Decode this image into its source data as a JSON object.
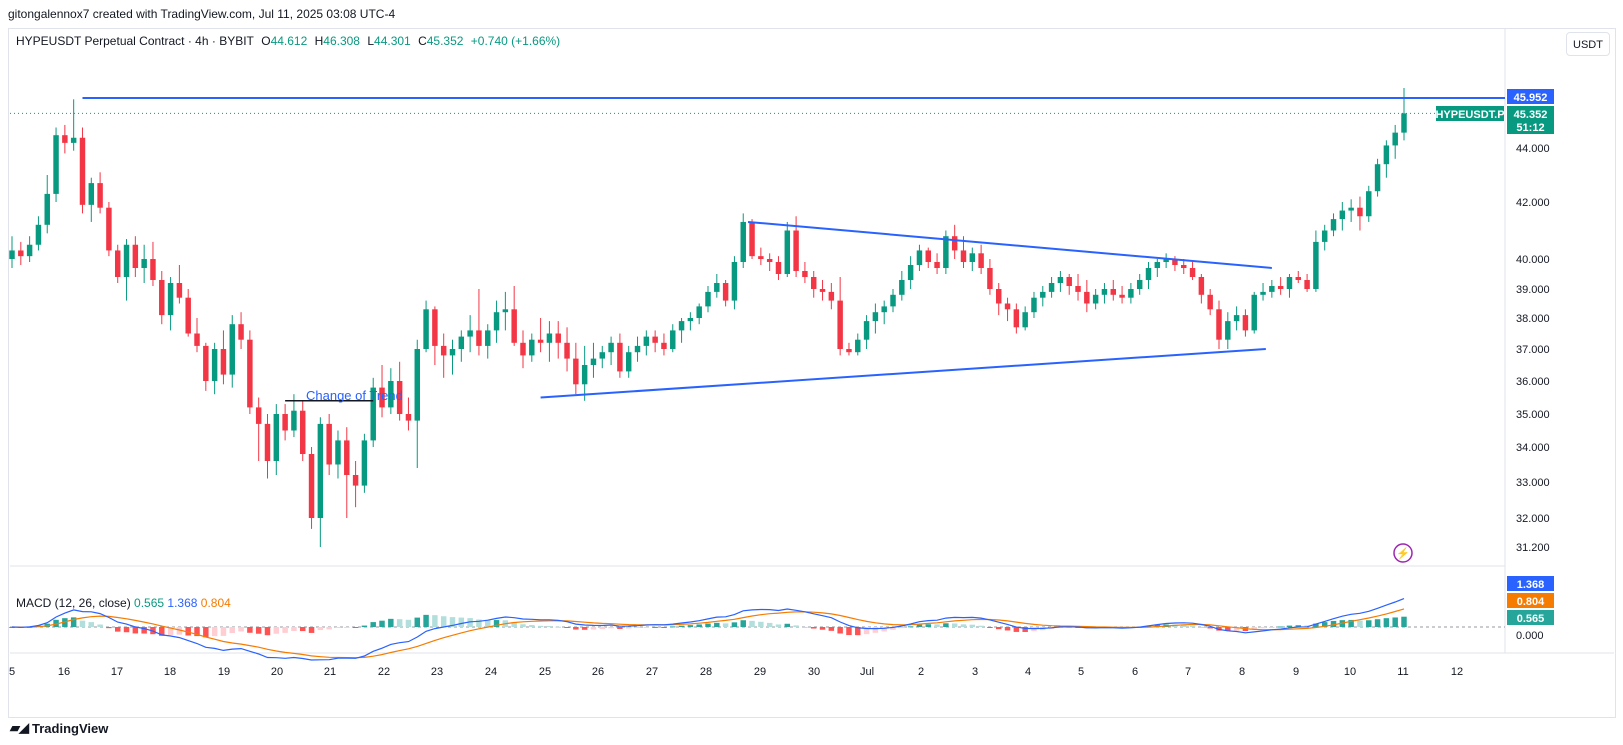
{
  "header": {
    "author_line": "gitongalennox7 created with TradingView.com, Jul 11, 2025 03:08 UTC-4"
  },
  "symbol": {
    "name": "HYPEUSDT Perpetual Contract · 4h · BYBIT",
    "o_label": "O",
    "o": "44.612",
    "h_label": "H",
    "h": "46.308",
    "l_label": "L",
    "l": "44.301",
    "c_label": "C",
    "c": "45.352",
    "change": "+0.740 (+1.66%)"
  },
  "currency_button": "USDT",
  "price_tags": {
    "resistance": "45.952",
    "ticker": "HYPEUSDT.P",
    "last": "45.352",
    "countdown": "51:12"
  },
  "annotation": "Change of Trend",
  "macd": {
    "label": "MACD (12, 26, close)",
    "hist": "0.565",
    "macd": "1.368",
    "signal": "0.804",
    "zero": "0.000"
  },
  "branding": "TradingView",
  "colors": {
    "up": "#089981",
    "down": "#f23645",
    "line": "#2962ff",
    "signal": "#f57c00",
    "hist_up_strong": "#26a69a",
    "hist_up_weak": "#b2dfdb",
    "hist_down_strong": "#ff5252",
    "hist_down_weak": "#ffcdd2",
    "accent_purple": "#9c27b0"
  },
  "chart_data": {
    "type": "candlestick",
    "timeframe": "4h",
    "price_axis_ticks": [
      "44.000",
      "42.000",
      "40.000",
      "39.000",
      "38.000",
      "37.000",
      "36.000",
      "35.000",
      "34.000",
      "33.000",
      "32.000",
      "31.200"
    ],
    "price_axis_values": [
      44,
      42,
      40,
      39,
      38,
      37,
      36,
      35,
      34,
      33,
      32,
      31.2
    ],
    "time_axis_labels": [
      "5",
      "16",
      "17",
      "18",
      "19",
      "20",
      "21",
      "22",
      "23",
      "24",
      "25",
      "26",
      "27",
      "28",
      "29",
      "30",
      "Jul",
      "2",
      "3",
      "4",
      "5",
      "6",
      "7",
      "8",
      "9",
      "10",
      "11",
      "12"
    ],
    "ohlc": [
      [
        40.0,
        40.8,
        39.7,
        40.3
      ],
      [
        40.3,
        40.6,
        39.8,
        40.1
      ],
      [
        40.1,
        40.8,
        39.9,
        40.5
      ],
      [
        40.5,
        41.5,
        40.3,
        41.2
      ],
      [
        41.2,
        43.0,
        40.9,
        42.3
      ],
      [
        42.3,
        44.8,
        42.0,
        44.5
      ],
      [
        44.5,
        44.9,
        43.8,
        44.2
      ],
      [
        44.2,
        45.9,
        43.9,
        44.4
      ],
      [
        44.4,
        44.8,
        41.6,
        41.9
      ],
      [
        41.9,
        42.9,
        41.3,
        42.7
      ],
      [
        42.7,
        43.1,
        41.6,
        41.8
      ],
      [
        41.8,
        42.0,
        40.1,
        40.3
      ],
      [
        40.3,
        40.5,
        39.2,
        39.4
      ],
      [
        39.4,
        40.7,
        38.6,
        40.5
      ],
      [
        40.5,
        40.8,
        39.4,
        39.7
      ],
      [
        39.7,
        40.5,
        39.2,
        40.0
      ],
      [
        40.0,
        40.6,
        39.1,
        39.3
      ],
      [
        39.3,
        39.6,
        37.8,
        38.1
      ],
      [
        38.1,
        39.4,
        37.6,
        39.2
      ],
      [
        39.2,
        39.8,
        38.5,
        38.7
      ],
      [
        38.7,
        39.0,
        37.4,
        37.5
      ],
      [
        37.5,
        38.0,
        36.9,
        37.1
      ],
      [
        37.1,
        37.2,
        35.7,
        36.0
      ],
      [
        36.0,
        37.2,
        35.6,
        37.0
      ],
      [
        37.0,
        37.6,
        35.9,
        36.2
      ],
      [
        36.2,
        38.1,
        35.8,
        37.8
      ],
      [
        37.8,
        38.2,
        37.0,
        37.3
      ],
      [
        37.3,
        37.6,
        35.0,
        35.2
      ],
      [
        35.2,
        35.5,
        33.6,
        34.7
      ],
      [
        34.7,
        35.0,
        33.1,
        33.6
      ],
      [
        33.6,
        35.3,
        33.2,
        35.0
      ],
      [
        35.0,
        35.3,
        34.2,
        34.5
      ],
      [
        34.5,
        35.6,
        34.3,
        35.1
      ],
      [
        35.1,
        35.4,
        33.6,
        33.8
      ],
      [
        33.8,
        34.0,
        31.7,
        32.0
      ],
      [
        32.0,
        34.9,
        31.2,
        34.7
      ],
      [
        34.7,
        35.0,
        33.2,
        33.5
      ],
      [
        33.5,
        34.5,
        33.1,
        34.2
      ],
      [
        34.2,
        34.6,
        32.0,
        33.2
      ],
      [
        33.2,
        33.6,
        32.3,
        32.9
      ],
      [
        32.9,
        34.4,
        32.7,
        34.2
      ],
      [
        34.2,
        36.1,
        34.0,
        35.8
      ],
      [
        35.8,
        36.5,
        34.9,
        35.2
      ],
      [
        35.2,
        36.4,
        35.0,
        36.0
      ],
      [
        36.0,
        36.6,
        34.8,
        35.0
      ],
      [
        35.0,
        35.5,
        34.5,
        34.8
      ],
      [
        34.8,
        37.3,
        33.4,
        37.0
      ],
      [
        37.0,
        38.6,
        36.9,
        38.3
      ],
      [
        38.3,
        38.4,
        36.5,
        37.1
      ],
      [
        37.1,
        37.5,
        36.1,
        36.8
      ],
      [
        36.8,
        37.3,
        36.2,
        37.0
      ],
      [
        37.0,
        37.6,
        36.6,
        37.4
      ],
      [
        37.4,
        38.1,
        36.9,
        37.6
      ],
      [
        37.6,
        39.0,
        36.8,
        37.1
      ],
      [
        37.1,
        37.8,
        36.7,
        37.6
      ],
      [
        37.6,
        38.6,
        37.2,
        38.2
      ],
      [
        38.2,
        38.9,
        37.6,
        38.3
      ],
      [
        38.3,
        39.1,
        37.1,
        37.2
      ],
      [
        37.2,
        37.6,
        36.4,
        36.8
      ],
      [
        36.8,
        37.5,
        36.6,
        37.3
      ],
      [
        37.3,
        38.0,
        36.9,
        37.2
      ],
      [
        37.2,
        37.9,
        36.6,
        37.5
      ],
      [
        37.5,
        37.9,
        36.7,
        37.2
      ],
      [
        37.2,
        37.7,
        36.3,
        36.7
      ],
      [
        36.7,
        37.2,
        35.6,
        35.9
      ],
      [
        35.9,
        37.1,
        35.4,
        36.5
      ],
      [
        36.5,
        37.2,
        36.1,
        36.7
      ],
      [
        36.7,
        37.1,
        36.4,
        36.9
      ],
      [
        36.9,
        37.4,
        36.5,
        37.2
      ],
      [
        37.2,
        37.5,
        36.1,
        36.3
      ],
      [
        36.3,
        37.1,
        36.1,
        36.9
      ],
      [
        36.9,
        37.4,
        36.6,
        37.1
      ],
      [
        37.1,
        37.6,
        36.8,
        37.4
      ],
      [
        37.4,
        37.6,
        36.9,
        37.2
      ],
      [
        37.2,
        37.5,
        36.8,
        37.0
      ],
      [
        37.0,
        37.8,
        36.9,
        37.6
      ],
      [
        37.6,
        38.0,
        37.2,
        37.9
      ],
      [
        37.9,
        38.2,
        37.6,
        38.0
      ],
      [
        38.0,
        38.5,
        37.8,
        38.4
      ],
      [
        38.4,
        39.1,
        38.2,
        38.9
      ],
      [
        38.9,
        39.5,
        38.7,
        39.2
      ],
      [
        39.2,
        39.3,
        38.4,
        38.6
      ],
      [
        38.6,
        40.1,
        38.3,
        39.9
      ],
      [
        39.9,
        41.6,
        39.7,
        41.3
      ],
      [
        41.3,
        41.4,
        40.0,
        40.1
      ],
      [
        40.1,
        40.4,
        39.8,
        40.0
      ],
      [
        40.0,
        40.2,
        39.6,
        39.9
      ],
      [
        39.9,
        40.1,
        39.3,
        39.5
      ],
      [
        39.5,
        41.3,
        39.4,
        41.0
      ],
      [
        41.0,
        41.5,
        39.4,
        39.6
      ],
      [
        39.6,
        39.9,
        39.2,
        39.4
      ],
      [
        39.4,
        39.6,
        38.7,
        39.0
      ],
      [
        39.0,
        39.3,
        38.6,
        38.9
      ],
      [
        38.9,
        39.2,
        38.3,
        38.6
      ],
      [
        38.6,
        39.4,
        36.8,
        37.0
      ],
      [
        37.0,
        37.2,
        36.8,
        36.9
      ],
      [
        36.9,
        37.5,
        36.8,
        37.3
      ],
      [
        37.3,
        38.1,
        37.0,
        37.9
      ],
      [
        37.9,
        38.5,
        37.5,
        38.2
      ],
      [
        38.2,
        38.6,
        37.8,
        38.4
      ],
      [
        38.4,
        39.0,
        38.2,
        38.8
      ],
      [
        38.8,
        39.6,
        38.6,
        39.3
      ],
      [
        39.3,
        40.1,
        39.0,
        39.8
      ],
      [
        39.8,
        40.5,
        39.6,
        40.3
      ],
      [
        40.3,
        40.4,
        39.7,
        39.9
      ],
      [
        39.9,
        40.2,
        39.5,
        39.7
      ],
      [
        39.7,
        41.0,
        39.5,
        40.8
      ],
      [
        40.8,
        41.2,
        40.0,
        40.3
      ],
      [
        40.3,
        40.8,
        39.7,
        39.9
      ],
      [
        39.9,
        40.4,
        39.6,
        40.2
      ],
      [
        40.2,
        40.5,
        39.5,
        39.7
      ],
      [
        39.7,
        40.0,
        38.8,
        39.0
      ],
      [
        39.0,
        39.2,
        38.1,
        38.5
      ],
      [
        38.5,
        38.7,
        37.9,
        38.3
      ],
      [
        38.3,
        38.5,
        37.5,
        37.7
      ],
      [
        37.7,
        38.4,
        37.6,
        38.2
      ],
      [
        38.2,
        38.9,
        38.0,
        38.7
      ],
      [
        38.7,
        39.1,
        38.4,
        38.9
      ],
      [
        38.9,
        39.4,
        38.7,
        39.2
      ],
      [
        39.2,
        39.6,
        38.9,
        39.4
      ],
      [
        39.4,
        39.5,
        38.8,
        39.1
      ],
      [
        39.1,
        39.5,
        38.6,
        38.9
      ],
      [
        38.9,
        39.3,
        38.2,
        38.5
      ],
      [
        38.5,
        39.0,
        38.3,
        38.8
      ],
      [
        38.8,
        39.2,
        38.5,
        39.0
      ],
      [
        39.0,
        39.3,
        38.6,
        38.8
      ],
      [
        38.8,
        39.1,
        38.5,
        38.7
      ],
      [
        38.7,
        39.2,
        38.5,
        39.0
      ],
      [
        39.0,
        39.5,
        38.8,
        39.3
      ],
      [
        39.3,
        39.9,
        39.0,
        39.7
      ],
      [
        39.7,
        40.0,
        39.4,
        39.9
      ],
      [
        39.9,
        40.2,
        39.7,
        40.0
      ],
      [
        40.0,
        40.1,
        39.6,
        39.8
      ],
      [
        39.8,
        40.0,
        39.5,
        39.7
      ],
      [
        39.7,
        39.9,
        39.3,
        39.4
      ],
      [
        39.4,
        39.5,
        38.5,
        38.8
      ],
      [
        38.8,
        39.0,
        38.1,
        38.3
      ],
      [
        38.3,
        38.6,
        37.0,
        37.3
      ],
      [
        37.3,
        38.2,
        37.0,
        37.9
      ],
      [
        37.9,
        38.4,
        37.6,
        38.1
      ],
      [
        38.1,
        38.3,
        37.4,
        37.6
      ],
      [
        37.6,
        38.9,
        37.5,
        38.8
      ],
      [
        38.8,
        39.2,
        38.6,
        38.9
      ],
      [
        38.9,
        39.3,
        38.7,
        39.1
      ],
      [
        39.1,
        39.4,
        38.8,
        39.0
      ],
      [
        39.0,
        39.5,
        38.7,
        39.4
      ],
      [
        39.4,
        39.6,
        39.2,
        39.3
      ],
      [
        39.3,
        39.5,
        38.9,
        39.0
      ],
      [
        39.0,
        41.0,
        38.9,
        40.6
      ],
      [
        40.6,
        41.2,
        40.3,
        41.0
      ],
      [
        41.0,
        41.6,
        40.8,
        41.4
      ],
      [
        41.4,
        42.0,
        41.0,
        41.7
      ],
      [
        41.7,
        42.1,
        41.3,
        41.8
      ],
      [
        41.8,
        42.2,
        41.0,
        41.5
      ],
      [
        41.5,
        42.6,
        41.3,
        42.4
      ],
      [
        42.4,
        43.6,
        42.2,
        43.4
      ],
      [
        43.4,
        44.3,
        42.9,
        44.1
      ],
      [
        44.1,
        44.9,
        43.6,
        44.6
      ],
      [
        44.6,
        46.3,
        44.3,
        45.352
      ]
    ],
    "annotations": {
      "resistance_level": 45.952,
      "descending_trendline": {
        "from": [
          1,
          41.3
        ],
        "to": [
          2,
          39.7
        ]
      },
      "ascending_trendline": {
        "from": [
          1,
          35.5
        ],
        "to": [
          2,
          37.0
        ]
      },
      "change_of_trend_level": 35.4
    },
    "macd_panel": {
      "macd": 1.368,
      "signal": 0.804,
      "histogram": 0.565,
      "zero_line": 0.0
    }
  }
}
